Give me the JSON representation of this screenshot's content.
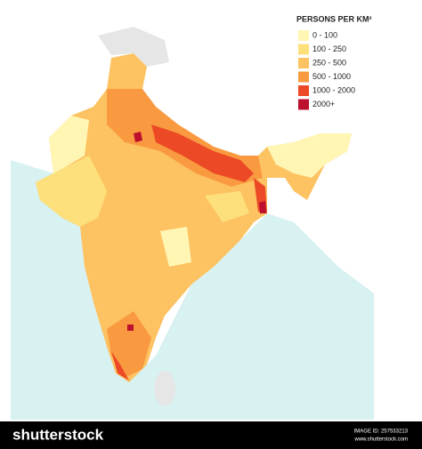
{
  "legend": {
    "title": "PERSONS PER KM²",
    "entries": [
      {
        "label": "0 - 100",
        "color": "#fff6b4"
      },
      {
        "label": "100 - 250",
        "color": "#fde07c"
      },
      {
        "label": "250 - 500",
        "color": "#fdc262"
      },
      {
        "label": "500 - 1000",
        "color": "#f99a40"
      },
      {
        "label": "1000 - 2000",
        "color": "#ec4a26"
      },
      {
        "label": "2000+",
        "color": "#bd0f2e"
      }
    ]
  },
  "footer": {
    "brand": "shutterstock",
    "image_id": "IMAGE ID: 257533213",
    "site": "www.shutterstock.com"
  }
}
